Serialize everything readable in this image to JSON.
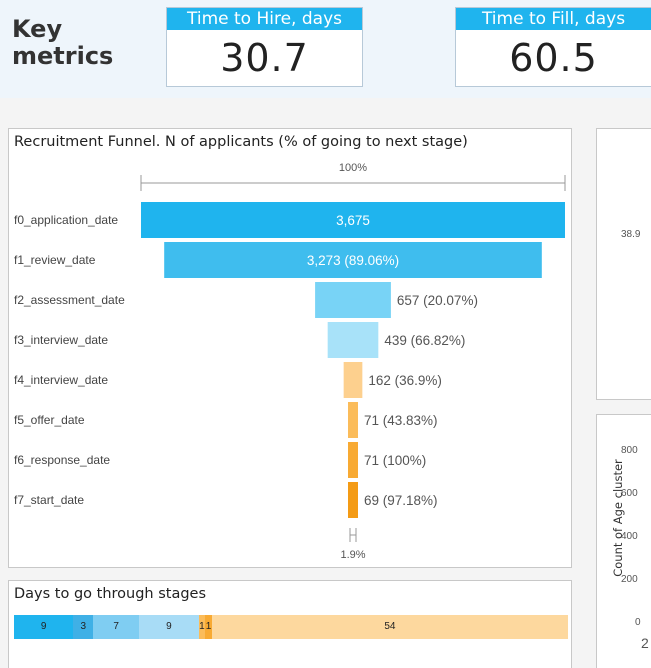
{
  "header": {
    "title": "Key metrics",
    "kpis": [
      {
        "label": "Time to Hire, days",
        "value": "30.7"
      },
      {
        "label": "Time to Fill, days",
        "value": "60.5"
      }
    ]
  },
  "funnel": {
    "title": "Recruitment Funnel. N of applicants (% of going to next stage)",
    "top_pct_label": "100%",
    "bottom_pct_label": "1.9%",
    "colors": [
      "#1fb4ee",
      "#3fbdee",
      "#78d3f6",
      "#a8e2f9",
      "#fdd08e",
      "#fbbc5a",
      "#f8aa33",
      "#f49b15"
    ]
  },
  "chart_data": {
    "type": "bar",
    "title": "Recruitment Funnel. N of applicants (% of going to next stage)",
    "categories": [
      "f0_application_date",
      "f1_review_date",
      "f2_assessment_date",
      "f3_interview_date",
      "f4_interview_date",
      "f5_offer_date",
      "f6_response_date",
      "f7_start_date"
    ],
    "values": [
      3675,
      3273,
      657,
      439,
      162,
      71,
      71,
      69
    ],
    "data_labels": [
      "3,675",
      "3,273 (89.06%)",
      "657 (20.07%)",
      "439 (66.82%)",
      "162 (36.9%)",
      "71 (43.83%)",
      "71 (100%)",
      "69 (97.18%)"
    ],
    "xlabel": "",
    "ylabel": ""
  },
  "days": {
    "title": "Days to go through stages",
    "segments": [
      {
        "label": "9",
        "value": 9,
        "color": "#1fb4ee"
      },
      {
        "label": "3",
        "value": 3,
        "color": "#3fb0e6"
      },
      {
        "label": "7",
        "value": 7,
        "color": "#7fcdf2"
      },
      {
        "label": "9",
        "value": 9,
        "color": "#a8dcf6"
      },
      {
        "label": "1",
        "value": 1,
        "color": "#fbbc5a"
      },
      {
        "label": "1",
        "value": 1,
        "color": "#f8aa33"
      },
      {
        "label": "54",
        "value": 54,
        "color": "#fdd89e"
      }
    ]
  },
  "right_panel": {
    "top_partial_label": "38.9",
    "y_axis_label": "Count of Age cluster",
    "y_ticks": [
      "800",
      "600",
      "400",
      "200",
      "0"
    ],
    "x_partial_tick": "2"
  }
}
